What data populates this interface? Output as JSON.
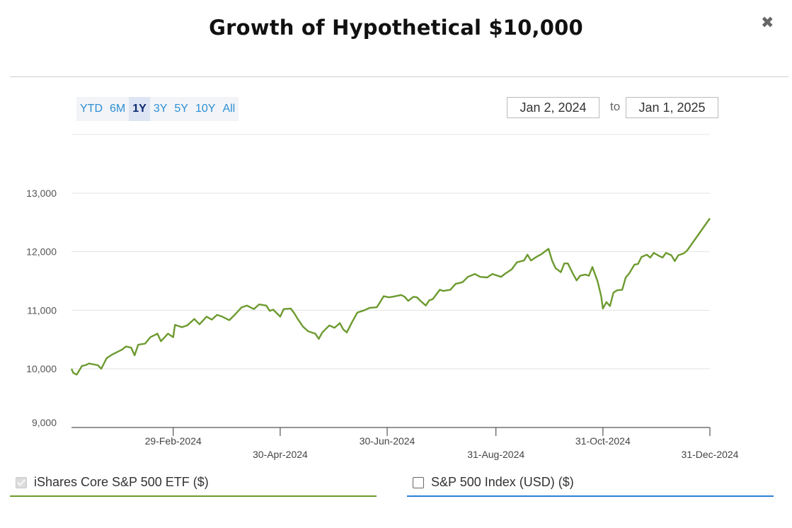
{
  "title": "Growth of Hypothetical $10,000",
  "close_glyph": "✖",
  "range_buttons": [
    "YTD",
    "6M",
    "1Y",
    "3Y",
    "5Y",
    "10Y",
    "All"
  ],
  "active_range": "1Y",
  "date_range": {
    "start": "Jan 2, 2024",
    "to_label": "to",
    "end": "Jan 1, 2025"
  },
  "colors": {
    "etf": "#6c9a2f",
    "index": "#2d7fd3",
    "grid": "#e3e3e3"
  },
  "legend": [
    {
      "label": "iShares Core S&P 500 ETF ($)",
      "checked": true
    },
    {
      "label": "S&P 500 Index (USD) ($)",
      "checked": false
    }
  ],
  "chart_data": {
    "type": "line",
    "ylim": [
      9000,
      13000
    ],
    "yticks": [
      9000,
      10000,
      11000,
      12000,
      13000
    ],
    "ytick_labels": [
      "9,000",
      "10,000",
      "11,000",
      "12,000",
      "13,000"
    ],
    "xlim": [
      "2024-01-02",
      "2024-12-31"
    ],
    "xticks": [
      {
        "date": "2024-02-29",
        "label": "29-Feb-2024",
        "row": 0
      },
      {
        "date": "2024-04-30",
        "label": "30-Apr-2024",
        "row": 1
      },
      {
        "date": "2024-06-30",
        "label": "30-Jun-2024",
        "row": 0
      },
      {
        "date": "2024-08-31",
        "label": "31-Aug-2024",
        "row": 1
      },
      {
        "date": "2024-10-31",
        "label": "31-Oct-2024",
        "row": 0
      },
      {
        "date": "2024-12-31",
        "label": "31-Dec-2024",
        "row": 1
      }
    ],
    "series": [
      {
        "name": "iShares Core S&P 500 ETF ($)",
        "points": [
          [
            "2024-01-02",
            10000
          ],
          [
            "2024-01-03",
            9930
          ],
          [
            "2024-01-05",
            9900
          ],
          [
            "2024-01-08",
            10050
          ],
          [
            "2024-01-10",
            10060
          ],
          [
            "2024-01-12",
            10090
          ],
          [
            "2024-01-17",
            10060
          ],
          [
            "2024-01-19",
            10000
          ],
          [
            "2024-01-22",
            10180
          ],
          [
            "2024-01-25",
            10240
          ],
          [
            "2024-01-29",
            10300
          ],
          [
            "2024-01-31",
            10330
          ],
          [
            "2024-02-02",
            10380
          ],
          [
            "2024-02-05",
            10360
          ],
          [
            "2024-02-07",
            10230
          ],
          [
            "2024-02-09",
            10410
          ],
          [
            "2024-02-13",
            10430
          ],
          [
            "2024-02-16",
            10540
          ],
          [
            "2024-02-20",
            10600
          ],
          [
            "2024-02-22",
            10470
          ],
          [
            "2024-02-26",
            10600
          ],
          [
            "2024-02-29",
            10540
          ],
          [
            "2024-03-01",
            10750
          ],
          [
            "2024-03-05",
            10710
          ],
          [
            "2024-03-08",
            10740
          ],
          [
            "2024-03-12",
            10850
          ],
          [
            "2024-03-15",
            10760
          ],
          [
            "2024-03-19",
            10890
          ],
          [
            "2024-03-22",
            10840
          ],
          [
            "2024-03-25",
            10920
          ],
          [
            "2024-03-28",
            10890
          ],
          [
            "2024-04-01",
            10830
          ],
          [
            "2024-04-04",
            10920
          ],
          [
            "2024-04-08",
            11050
          ],
          [
            "2024-04-11",
            11080
          ],
          [
            "2024-04-15",
            11020
          ],
          [
            "2024-04-18",
            11100
          ],
          [
            "2024-04-22",
            11080
          ],
          [
            "2024-04-24",
            10990
          ],
          [
            "2024-04-26",
            11010
          ],
          [
            "2024-04-30",
            10890
          ],
          [
            "2024-05-02",
            11020
          ],
          [
            "2024-05-06",
            11030
          ],
          [
            "2024-05-08",
            10950
          ],
          [
            "2024-05-10",
            10850
          ],
          [
            "2024-05-13",
            10720
          ],
          [
            "2024-05-16",
            10640
          ],
          [
            "2024-05-20",
            10600
          ],
          [
            "2024-05-22",
            10510
          ],
          [
            "2024-05-24",
            10620
          ],
          [
            "2024-05-28",
            10740
          ],
          [
            "2024-05-31",
            10700
          ],
          [
            "2024-06-03",
            10780
          ],
          [
            "2024-06-05",
            10670
          ],
          [
            "2024-06-07",
            10620
          ],
          [
            "2024-06-10",
            10800
          ],
          [
            "2024-06-13",
            10960
          ],
          [
            "2024-06-17",
            11000
          ],
          [
            "2024-06-20",
            11040
          ],
          [
            "2024-06-24",
            11050
          ],
          [
            "2024-06-26",
            11140
          ],
          [
            "2024-06-28",
            11240
          ],
          [
            "2024-07-01",
            11220
          ],
          [
            "2024-07-03",
            11230
          ],
          [
            "2024-07-08",
            11260
          ],
          [
            "2024-07-10",
            11230
          ],
          [
            "2024-07-12",
            11160
          ],
          [
            "2024-07-15",
            11230
          ],
          [
            "2024-07-17",
            11220
          ],
          [
            "2024-07-19",
            11160
          ],
          [
            "2024-07-22",
            11080
          ],
          [
            "2024-07-24",
            11170
          ],
          [
            "2024-07-26",
            11190
          ],
          [
            "2024-07-30",
            11350
          ],
          [
            "2024-08-01",
            11330
          ],
          [
            "2024-08-05",
            11350
          ],
          [
            "2024-08-08",
            11450
          ],
          [
            "2024-08-12",
            11480
          ],
          [
            "2024-08-15",
            11570
          ],
          [
            "2024-08-19",
            11620
          ],
          [
            "2024-08-22",
            11570
          ],
          [
            "2024-08-26",
            11560
          ],
          [
            "2024-08-29",
            11620
          ],
          [
            "2024-09-03",
            11570
          ],
          [
            "2024-09-05",
            11620
          ],
          [
            "2024-09-09",
            11700
          ],
          [
            "2024-09-12",
            11820
          ],
          [
            "2024-09-16",
            11850
          ],
          [
            "2024-09-18",
            11950
          ],
          [
            "2024-09-20",
            11850
          ],
          [
            "2024-09-23",
            11910
          ],
          [
            "2024-09-26",
            11960
          ],
          [
            "2024-09-30",
            12050
          ],
          [
            "2024-10-02",
            11850
          ],
          [
            "2024-10-04",
            11720
          ],
          [
            "2024-10-07",
            11650
          ],
          [
            "2024-10-09",
            11800
          ],
          [
            "2024-10-11",
            11800
          ],
          [
            "2024-10-14",
            11620
          ],
          [
            "2024-10-16",
            11510
          ],
          [
            "2024-10-18",
            11590
          ],
          [
            "2024-10-21",
            11610
          ],
          [
            "2024-10-23",
            11590
          ],
          [
            "2024-10-25",
            11740
          ],
          [
            "2024-10-28",
            11490
          ],
          [
            "2024-10-30",
            11240
          ],
          [
            "2024-10-31",
            11030
          ],
          [
            "2024-11-02",
            11140
          ],
          [
            "2024-11-04",
            11070
          ],
          [
            "2024-11-06",
            11300
          ],
          [
            "2024-11-08",
            11340
          ],
          [
            "2024-11-11",
            11350
          ],
          [
            "2024-11-13",
            11560
          ],
          [
            "2024-11-15",
            11630
          ],
          [
            "2024-11-18",
            11780
          ],
          [
            "2024-11-20",
            11790
          ],
          [
            "2024-11-22",
            11910
          ],
          [
            "2024-11-25",
            11950
          ],
          [
            "2024-11-27",
            11900
          ],
          [
            "2024-11-29",
            11980
          ],
          [
            "2024-12-02",
            11930
          ],
          [
            "2024-12-04",
            11900
          ],
          [
            "2024-12-06",
            11980
          ],
          [
            "2024-12-09",
            11940
          ],
          [
            "2024-12-11",
            11840
          ],
          [
            "2024-12-13",
            11940
          ],
          [
            "2024-12-16",
            11970
          ],
          [
            "2024-12-18",
            12020
          ],
          [
            "2024-12-31",
            12570
          ]
        ]
      }
    ]
  }
}
